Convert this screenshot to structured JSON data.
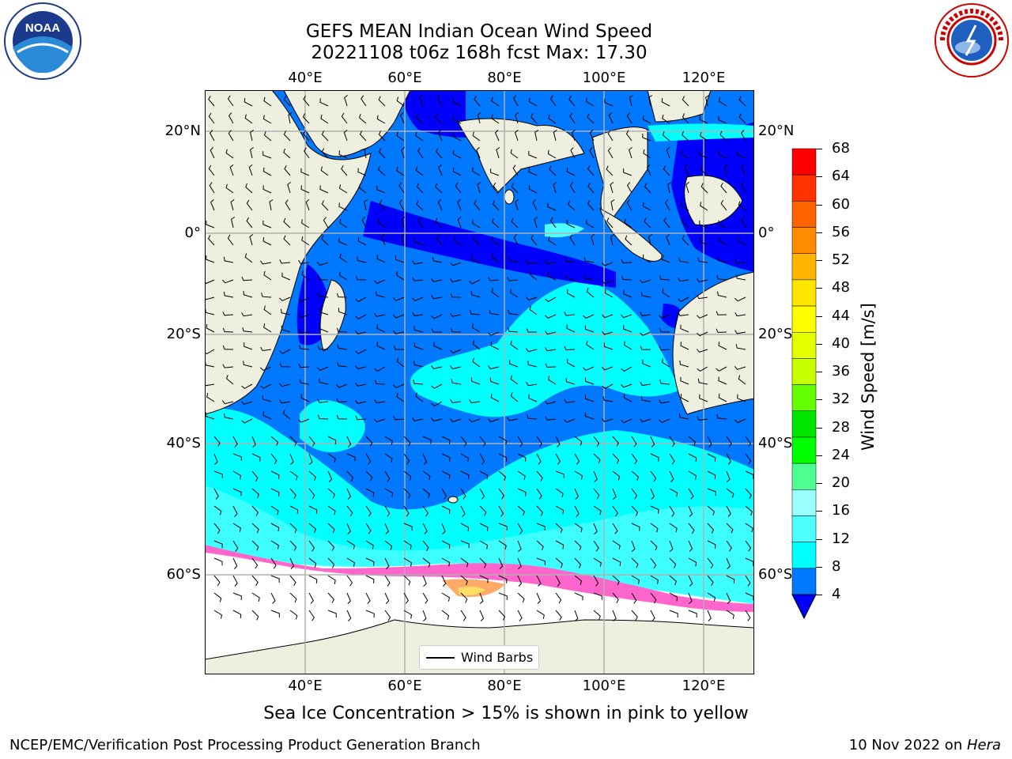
{
  "title": {
    "line1": "GEFS MEAN Indian Ocean Wind Speed",
    "line2": "20221108 t06z 168h fcst   Max: 17.30"
  },
  "map": {
    "lon_ticks_top": [
      "40°E",
      "60°E",
      "80°E",
      "100°E",
      "120°E"
    ],
    "lon_ticks_bottom": [
      "40°E",
      "60°E",
      "80°E",
      "100°E",
      "120°E"
    ],
    "lat_ticks_left": [
      "20°N",
      "0°",
      "20°S",
      "40°S",
      "60°S"
    ],
    "lat_ticks_right": [
      "20°N",
      "0°",
      "20°S",
      "40°S",
      "60°S"
    ],
    "gridlines": true,
    "legend_label": "Wind Barbs",
    "legend_placement": "bottom-center"
  },
  "colorbar": {
    "label": "Wind Speed [m/s]",
    "ticks": [
      "68",
      "64",
      "60",
      "56",
      "52",
      "48",
      "44",
      "40",
      "36",
      "32",
      "28",
      "24",
      "20",
      "16",
      "12",
      "8",
      "4"
    ],
    "bins": [
      {
        "range": "64-68",
        "color": "#ff0000"
      },
      {
        "range": "60-64",
        "color": "#ff3200"
      },
      {
        "range": "56-60",
        "color": "#ff6400"
      },
      {
        "range": "52-56",
        "color": "#ff8c00"
      },
      {
        "range": "48-52",
        "color": "#ffb400"
      },
      {
        "range": "44-48",
        "color": "#ffe600"
      },
      {
        "range": "40-44",
        "color": "#ffff00"
      },
      {
        "range": "36-40",
        "color": "#e6ff00"
      },
      {
        "range": "32-36",
        "color": "#c8ff00"
      },
      {
        "range": "28-32",
        "color": "#64ff00"
      },
      {
        "range": "24-28",
        "color": "#00e600"
      },
      {
        "range": "20-24",
        "color": "#00ff00"
      },
      {
        "range": "16-20",
        "color": "#4dff91"
      },
      {
        "range": "12-16",
        "color": "#99ffff"
      },
      {
        "range": "8-12",
        "color": "#4dffff"
      },
      {
        "range": "4-8",
        "color": "#00ffff"
      },
      {
        "range": "0-4",
        "color": "#0078ff"
      }
    ],
    "under_color": "#0000ff"
  },
  "colors": {
    "land": "#efefdf",
    "sea_ice_none": "#ffffff",
    "dark_blue": "#0000ff",
    "blue": "#0078ff",
    "cyan": "#00ffff",
    "light_cyan": "#4dffff",
    "ice_pink": "#ff66cc",
    "ice_orange": "#ffaa66",
    "ice_yellow": "#ffdd66"
  },
  "subtitle": "Sea Ice Concentration > 15% is shown in pink to yellow",
  "footer": {
    "left": "NCEP/EMC/Verification Post Processing Product Generation Branch",
    "date": "10 Nov 2022 on ",
    "host": "Hera"
  },
  "logos": {
    "noaa": {
      "icon": "noaa-logo",
      "text": "NOAA"
    },
    "nws": {
      "icon": "nws-logo"
    }
  }
}
